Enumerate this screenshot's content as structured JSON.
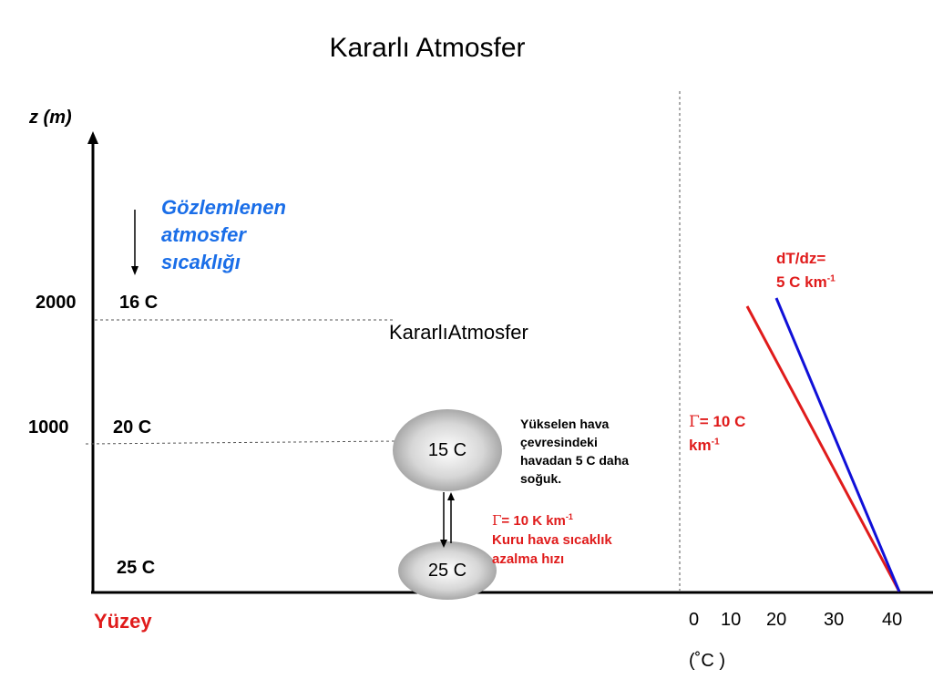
{
  "title": "Kararlı Atmosfer",
  "axis": {
    "y_label": "z (m)",
    "surface_label": "Yüzey",
    "temp_unit": "(˚C )",
    "temp_ticks": [
      "0",
      "10",
      "20",
      "30",
      "40"
    ]
  },
  "observed": {
    "line1": "Gözlemlenen",
    "line2": "atmosfer",
    "line3": "sıcaklığı"
  },
  "levels": [
    {
      "height": "2000",
      "temp": "16 C"
    },
    {
      "height": "1000",
      "temp": "20 C"
    },
    {
      "height": "",
      "temp": "25 C"
    }
  ],
  "stable_label": "KararlıAtmosfer",
  "parcel": {
    "upper": "15 C",
    "lower": "25 C",
    "note_line1": "Yükselen hava",
    "note_line2": "çevresindeki",
    "note_line3": "havadan 5 C daha",
    "note_line4": "soğuk."
  },
  "dry_rate": {
    "symbol": "Γ",
    "value": "= 10 K km",
    "exp": "-1",
    "line2": "Kuru hava sıcaklık",
    "line3": "azalma hızı"
  },
  "right_panel": {
    "gamma_symbol": "Γ",
    "gamma_value": "= 10 C",
    "gamma_unit": "km",
    "gamma_exp": "-1",
    "env_line1": "dT/dz=",
    "env_line2": "5 C km",
    "env_exp": "-1"
  },
  "colors": {
    "accent_blue": "#1a6ee8",
    "red": "#e01b1b",
    "line_blue": "#1010d8"
  }
}
